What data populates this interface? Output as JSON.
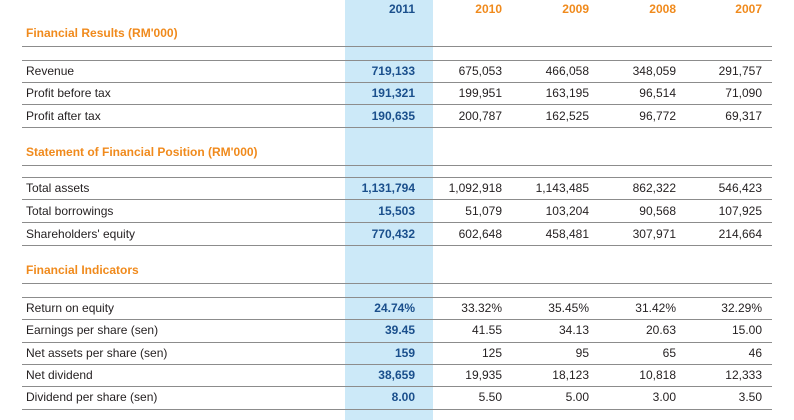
{
  "years": [
    "2011",
    "2010",
    "2009",
    "2008",
    "2007"
  ],
  "sections": [
    {
      "title": "Financial Results (RM'000)",
      "rows": [
        {
          "label": "Revenue",
          "values": [
            "719,133",
            "675,053",
            "466,058",
            "348,059",
            "291,757"
          ]
        },
        {
          "label": "Profit before tax",
          "values": [
            "191,321",
            "199,951",
            "163,195",
            "96,514",
            "71,090"
          ]
        },
        {
          "label": "Profit after tax",
          "values": [
            "190,635",
            "200,787",
            "162,525",
            "96,772",
            "69,317"
          ]
        }
      ]
    },
    {
      "title": "Statement of Financial Position (RM'000)",
      "rows": [
        {
          "label": "Total assets",
          "values": [
            "1,131,794",
            "1,092,918",
            "1,143,485",
            "862,322",
            "546,423"
          ]
        },
        {
          "label": "Total borrowings",
          "values": [
            "15,503",
            "51,079",
            "103,204",
            "90,568",
            "107,925"
          ]
        },
        {
          "label": "Shareholders' equity",
          "values": [
            "770,432",
            "602,648",
            "458,481",
            "307,971",
            "214,664"
          ]
        }
      ]
    },
    {
      "title": "Financial Indicators",
      "rows": [
        {
          "label": "Return on equity",
          "values": [
            "24.74%",
            "33.32%",
            "35.45%",
            "31.42%",
            "32.29%"
          ]
        },
        {
          "label": "Earnings per share (sen)",
          "values": [
            "39.45",
            "41.55",
            "34.13",
            "20.63",
            "15.00"
          ]
        },
        {
          "label": "Net assets per share (sen)",
          "values": [
            "159",
            "125",
            "95",
            "65",
            "46"
          ]
        },
        {
          "label": "Net dividend",
          "values": [
            "38,659",
            "19,935",
            "18,123",
            "10,818",
            "12,333"
          ]
        },
        {
          "label": "Dividend per share (sen)",
          "values": [
            "8.00",
            "5.50",
            "5.00",
            "3.00",
            "3.50"
          ]
        }
      ]
    }
  ],
  "colors": {
    "highlight_column": "#cce9f8",
    "section_title": "#f08a1c",
    "current_year_values": "#1a4f8c",
    "rule_lines": "#8c8c8c"
  }
}
